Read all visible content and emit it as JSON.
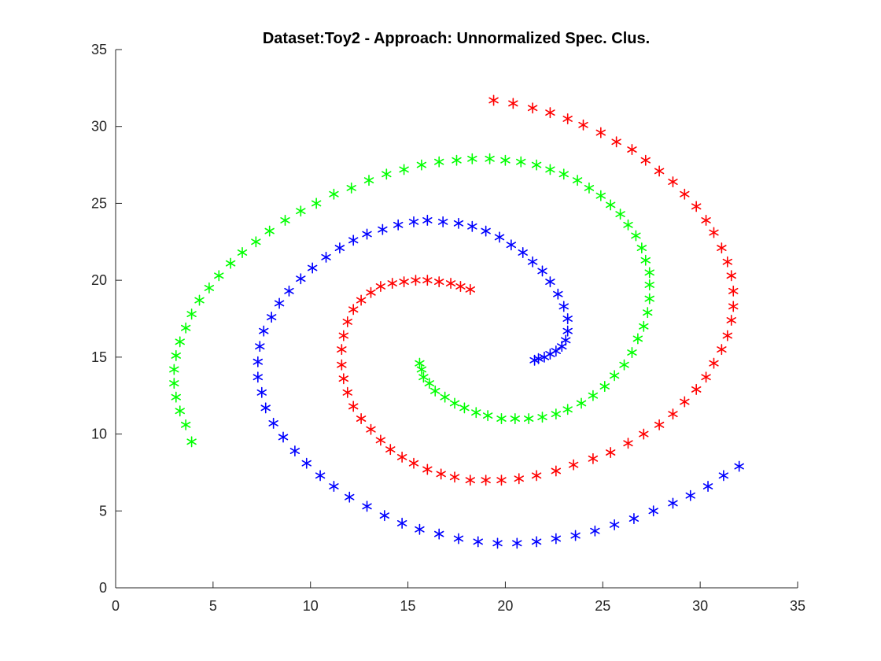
{
  "chart_data": {
    "type": "scatter",
    "title": "Dataset:Toy2 - Approach: Unnormalized Spec. Clus.",
    "xlabel": "",
    "ylabel": "",
    "xlim": [
      0,
      35
    ],
    "ylim": [
      0,
      35
    ],
    "xticks": [
      "0",
      "5",
      "10",
      "15",
      "20",
      "25",
      "30",
      "35"
    ],
    "yticks": [
      "0",
      "5",
      "10",
      "15",
      "20",
      "25",
      "30",
      "35"
    ],
    "marker": "asterisk",
    "grid": false,
    "legend": false,
    "series": [
      {
        "color": "#ff0000",
        "x": [
          19.4,
          20.4,
          21.4,
          22.3,
          23.2,
          24.0,
          24.9,
          25.7,
          26.5,
          27.2,
          27.9,
          28.6,
          29.2,
          29.8,
          30.3,
          30.7,
          31.1,
          31.4,
          31.6,
          31.7,
          31.7,
          31.6,
          31.4,
          31.1,
          30.7,
          30.3,
          29.8,
          29.2,
          28.6,
          27.9,
          27.1,
          26.3,
          25.4,
          24.5,
          23.5,
          22.6,
          21.6,
          20.7,
          19.8,
          19.0,
          18.2,
          17.4,
          16.7,
          16.0,
          15.3,
          14.7,
          14.1,
          13.6,
          13.1,
          12.6,
          12.2,
          11.9,
          11.7,
          11.6,
          11.6,
          11.7,
          11.9,
          12.2,
          12.6,
          13.1,
          13.6,
          14.2,
          14.8,
          15.4,
          16.0,
          16.6,
          17.2,
          17.7,
          18.2
        ],
        "y": [
          31.7,
          31.5,
          31.2,
          30.9,
          30.5,
          30.1,
          29.6,
          29.0,
          28.5,
          27.8,
          27.1,
          26.4,
          25.6,
          24.8,
          23.9,
          23.1,
          22.1,
          21.2,
          20.3,
          19.3,
          18.3,
          17.4,
          16.4,
          15.5,
          14.6,
          13.7,
          12.9,
          12.1,
          11.3,
          10.6,
          10.0,
          9.4,
          8.8,
          8.4,
          8.0,
          7.6,
          7.3,
          7.1,
          7.0,
          7.0,
          7.0,
          7.2,
          7.4,
          7.7,
          8.1,
          8.5,
          9.0,
          9.6,
          10.3,
          11.0,
          11.8,
          12.7,
          13.6,
          14.5,
          15.5,
          16.4,
          17.3,
          18.1,
          18.7,
          19.2,
          19.6,
          19.8,
          19.9,
          20.0,
          20.0,
          19.9,
          19.8,
          19.6,
          19.4
        ]
      },
      {
        "color": "#00ff00",
        "x": [
          3.9,
          3.6,
          3.3,
          3.1,
          3.0,
          3.0,
          3.1,
          3.3,
          3.6,
          3.9,
          4.3,
          4.8,
          5.3,
          5.9,
          6.5,
          7.2,
          7.9,
          8.7,
          9.5,
          10.3,
          11.2,
          12.1,
          13.0,
          13.9,
          14.8,
          15.7,
          16.6,
          17.5,
          18.3,
          19.2,
          20.0,
          20.8,
          21.6,
          22.3,
          23.0,
          23.7,
          24.3,
          24.9,
          25.4,
          25.9,
          26.3,
          26.7,
          27.0,
          27.2,
          27.4,
          27.4,
          27.4,
          27.3,
          27.1,
          26.8,
          26.5,
          26.1,
          25.6,
          25.1,
          24.5,
          23.9,
          23.2,
          22.6,
          21.9,
          21.2,
          20.5,
          19.8,
          19.1,
          18.5,
          17.9,
          17.4,
          16.9,
          16.4,
          16.1,
          15.8,
          15.7,
          15.6
        ],
        "y": [
          9.5,
          10.6,
          11.5,
          12.4,
          13.3,
          14.2,
          15.1,
          16.0,
          16.9,
          17.8,
          18.7,
          19.5,
          20.3,
          21.1,
          21.8,
          22.5,
          23.2,
          23.9,
          24.5,
          25.0,
          25.6,
          26.0,
          26.5,
          26.9,
          27.2,
          27.5,
          27.7,
          27.8,
          27.9,
          27.9,
          27.8,
          27.7,
          27.5,
          27.2,
          26.9,
          26.5,
          26.0,
          25.5,
          24.9,
          24.3,
          23.6,
          22.9,
          22.1,
          21.3,
          20.5,
          19.7,
          18.8,
          17.9,
          17.0,
          16.2,
          15.3,
          14.5,
          13.8,
          13.1,
          12.5,
          12.0,
          11.6,
          11.3,
          11.1,
          11.0,
          11.0,
          11.0,
          11.2,
          11.4,
          11.7,
          12.0,
          12.4,
          12.8,
          13.3,
          13.7,
          14.2,
          14.6
        ]
      },
      {
        "color": "#0000ff",
        "x": [
          32.0,
          31.2,
          30.4,
          29.5,
          28.6,
          27.6,
          26.6,
          25.6,
          24.6,
          23.6,
          22.6,
          21.6,
          20.6,
          19.6,
          18.6,
          17.6,
          16.6,
          15.6,
          14.7,
          13.8,
          12.9,
          12.0,
          11.2,
          10.5,
          9.8,
          9.2,
          8.6,
          8.1,
          7.7,
          7.5,
          7.3,
          7.3,
          7.4,
          7.6,
          8.0,
          8.4,
          8.9,
          9.5,
          10.1,
          10.8,
          11.5,
          12.2,
          12.9,
          13.7,
          14.5,
          15.3,
          16.0,
          16.8,
          17.6,
          18.3,
          19.0,
          19.7,
          20.3,
          20.9,
          21.4,
          21.9,
          22.3,
          22.7,
          23.0,
          23.2,
          23.2,
          23.1,
          22.9,
          22.6,
          22.3,
          22.0,
          21.7,
          21.5
        ],
        "y": [
          7.9,
          7.3,
          6.6,
          6.0,
          5.5,
          5.0,
          4.5,
          4.1,
          3.7,
          3.4,
          3.2,
          3.0,
          2.9,
          2.9,
          3.0,
          3.2,
          3.5,
          3.8,
          4.2,
          4.7,
          5.3,
          5.9,
          6.6,
          7.3,
          8.1,
          8.9,
          9.8,
          10.7,
          11.7,
          12.7,
          13.7,
          14.7,
          15.7,
          16.7,
          17.6,
          18.5,
          19.3,
          20.1,
          20.8,
          21.5,
          22.1,
          22.6,
          23.0,
          23.3,
          23.6,
          23.8,
          23.9,
          23.8,
          23.7,
          23.5,
          23.2,
          22.8,
          22.3,
          21.8,
          21.2,
          20.6,
          19.9,
          19.1,
          18.3,
          17.5,
          16.7,
          16.1,
          15.7,
          15.4,
          15.2,
          15.0,
          14.9,
          14.8
        ]
      }
    ]
  }
}
